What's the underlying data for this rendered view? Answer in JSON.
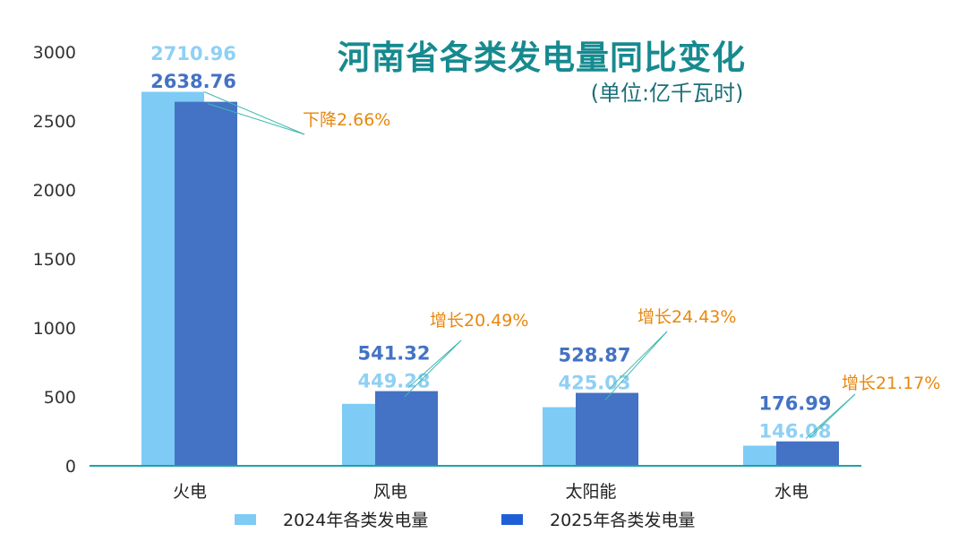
{
  "chart_data": {
    "type": "bar",
    "title": "河南省各类发电量同比变化",
    "subtitle": "(单位:亿千瓦时)",
    "categories": [
      "火电",
      "风电",
      "太阳能",
      "水电"
    ],
    "series": [
      {
        "name": "2024年各类发电量",
        "values": [
          2710.96,
          449.28,
          425.03,
          146.08
        ],
        "color": "#7ecbf5"
      },
      {
        "name": "2025年各类发电量",
        "values": [
          2638.76,
          541.32,
          528.87,
          176.99
        ],
        "color": "#4472c4"
      }
    ],
    "value_labels_2024": [
      "2710.96",
      "449.28",
      "425.03",
      "146.08"
    ],
    "value_labels_2025": [
      "2638.76",
      "541.32",
      "528.87",
      "176.99"
    ],
    "change_labels": [
      "下降2.66%",
      "增长20.49%",
      "增长24.43%",
      "增长21.17%"
    ],
    "yticks": [
      "0",
      "500",
      "1000",
      "1500",
      "2000",
      "2500",
      "3000"
    ],
    "ylim": [
      0,
      3000
    ],
    "grid": false,
    "legend_position": "bottom",
    "colors": {
      "title": "#168a8f",
      "annotation": "#e8870e",
      "axis": "#1aa3a8",
      "legend_2025": "#1f5fd6"
    }
  }
}
